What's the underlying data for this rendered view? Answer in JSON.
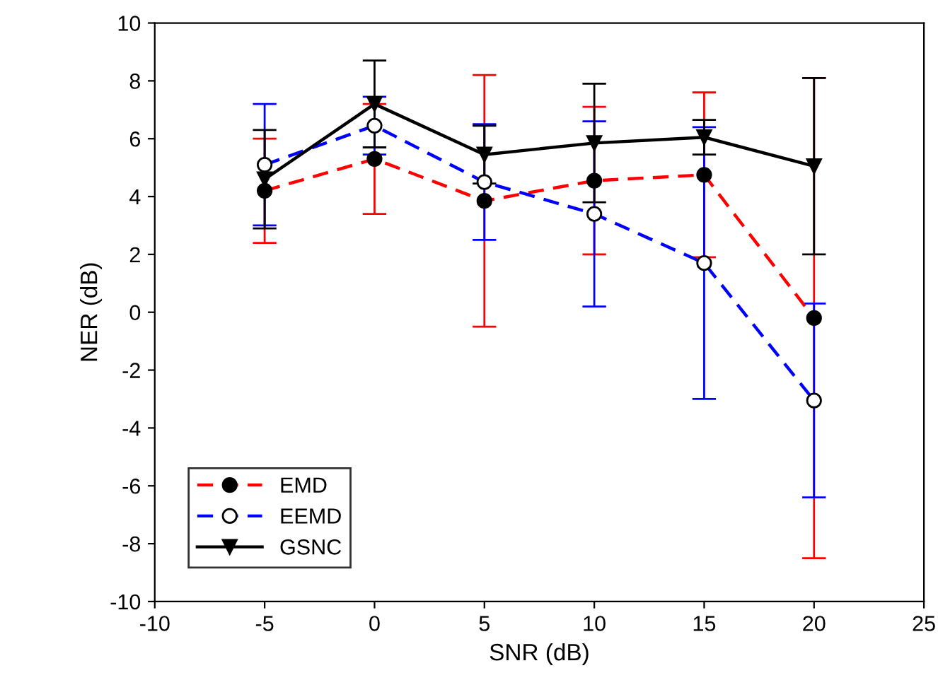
{
  "chart_data": {
    "type": "line",
    "xlabel": "SNR (dB)",
    "ylabel": "NER (dB)",
    "x": [
      -5,
      0,
      5,
      10,
      15,
      20
    ],
    "series": [
      {
        "name": "EMD",
        "color": "#ff0000",
        "marker": "circle",
        "line_style": "dashed",
        "values": [
          4.2,
          5.3,
          3.85,
          4.55,
          4.75,
          -0.2
        ],
        "errors": [
          1.8,
          1.9,
          4.35,
          2.55,
          2.85,
          8.3
        ]
      },
      {
        "name": "EEMD",
        "color": "#0000ff",
        "marker": "circle",
        "line_style": "dashed",
        "values": [
          5.1,
          6.45,
          4.5,
          3.4,
          1.7,
          -3.05
        ],
        "errors": [
          2.1,
          1.0,
          2.0,
          3.2,
          4.7,
          3.35
        ]
      },
      {
        "name": "GSNC",
        "color": "#000000",
        "marker": "triangle",
        "line_style": "solid",
        "values": [
          4.6,
          7.2,
          5.45,
          5.85,
          6.05,
          5.05
        ],
        "errors": [
          1.7,
          1.5,
          1.0,
          2.05,
          0.6,
          3.05
        ]
      }
    ],
    "xlim": [
      -10,
      25
    ],
    "xticks": [
      -10,
      -5,
      0,
      5,
      10,
      15,
      20,
      25
    ],
    "ylim": [
      -10,
      10
    ],
    "yticks": [
      -10,
      -8,
      -6,
      -4,
      -2,
      0,
      2,
      4,
      6,
      8,
      10
    ],
    "grid": false,
    "legend": "bottom left"
  }
}
